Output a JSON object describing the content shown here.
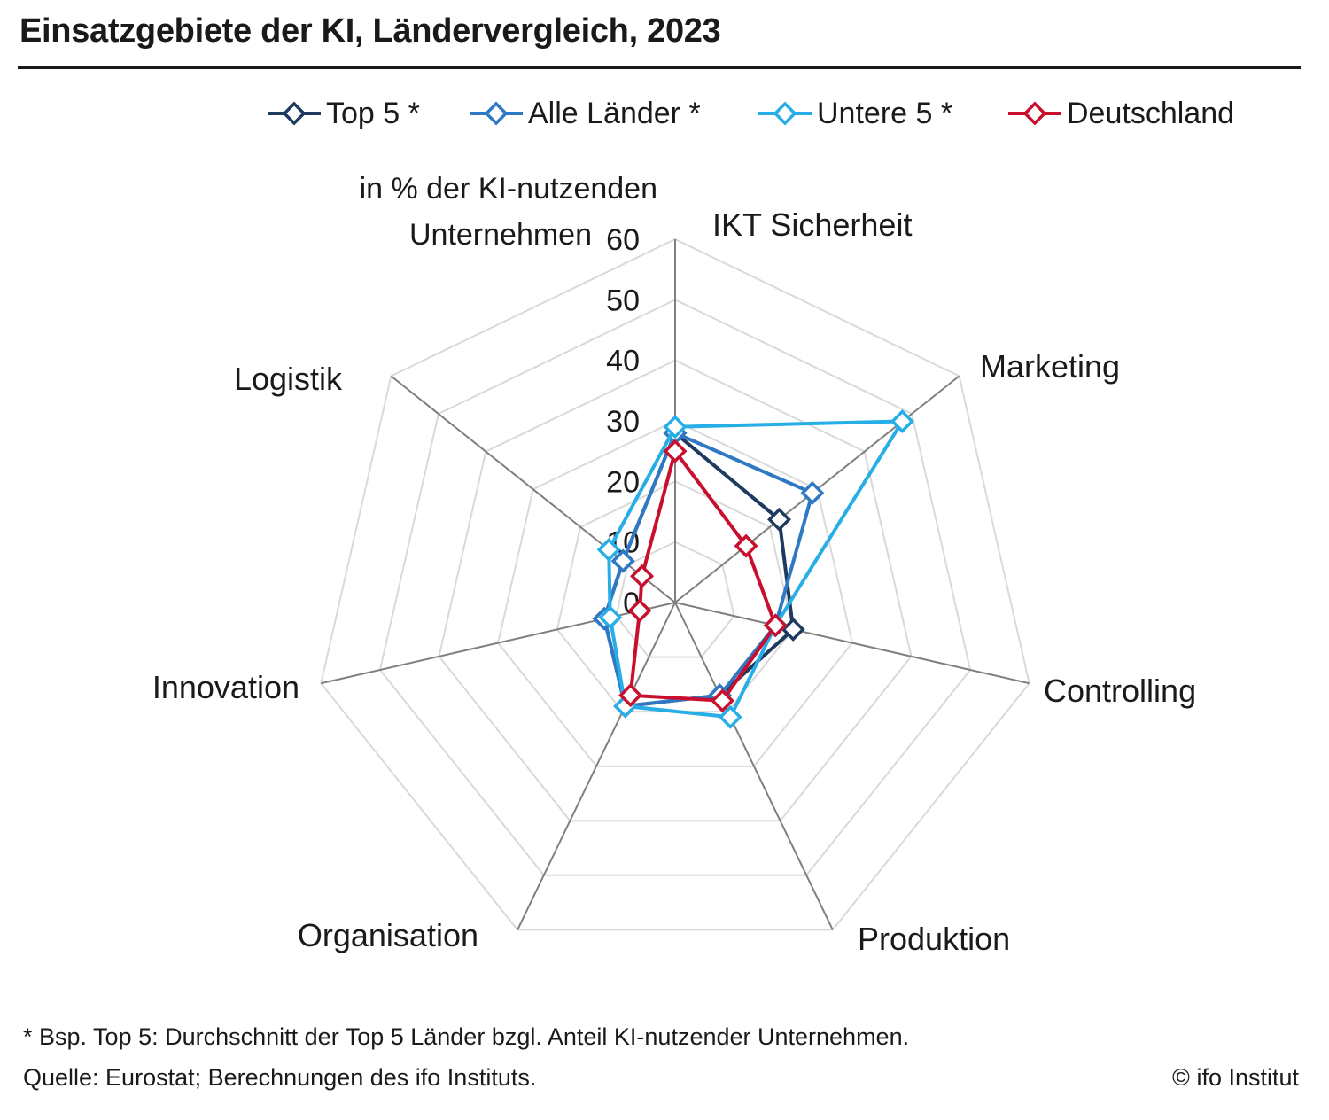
{
  "title": "Einsatzgebiete der KI, Ländervergleich, 2023",
  "colors": {
    "top5": "#1f3a5f",
    "alle": "#2f78c4",
    "untere": "#27aee6",
    "deutschland": "#c8102e",
    "grid": "#d9d9d9",
    "spoke": "#7f7f7f"
  },
  "chart_data": {
    "type": "radar",
    "title": "Einsatzgebiete der KI, Ländervergleich, 2023",
    "unit_label": "in % der KI-nutzenden Unternehmen",
    "unit_label_lines": [
      "in % der KI-nutzenden",
      "Unternehmen"
    ],
    "categories": [
      "IKT Sicherheit",
      "Marketing",
      "Controlling",
      "Produktion",
      "Organisation",
      "Innovation",
      "Logistik"
    ],
    "rlim": [
      0,
      60
    ],
    "ticks": [
      "0",
      "10",
      "20",
      "30",
      "40",
      "50",
      "60"
    ],
    "grid": true,
    "legend_position": "top",
    "series": [
      {
        "name": "Top 5 *",
        "color_key": "top5",
        "values": [
          28,
          22,
          20,
          17,
          19,
          12,
          11
        ]
      },
      {
        "name": "Alle Länder *",
        "color_key": "alle",
        "values": [
          28,
          29,
          17,
          17,
          19,
          12,
          11
        ]
      },
      {
        "name": "Untere 5 *",
        "color_key": "untere",
        "values": [
          29,
          48,
          17,
          21,
          19,
          11,
          14
        ]
      },
      {
        "name": "Deutschland",
        "color_key": "deutschland",
        "values": [
          25,
          15,
          17,
          18,
          17,
          6,
          7
        ]
      }
    ]
  },
  "footnote": "* Bsp. Top 5: Durchschnitt der Top 5 Länder bzgl. Anteil KI-nutzender Unternehmen.",
  "source": "Quelle: Eurostat; Berechnungen des ifo Instituts.",
  "copyright": "© ifo Institut"
}
